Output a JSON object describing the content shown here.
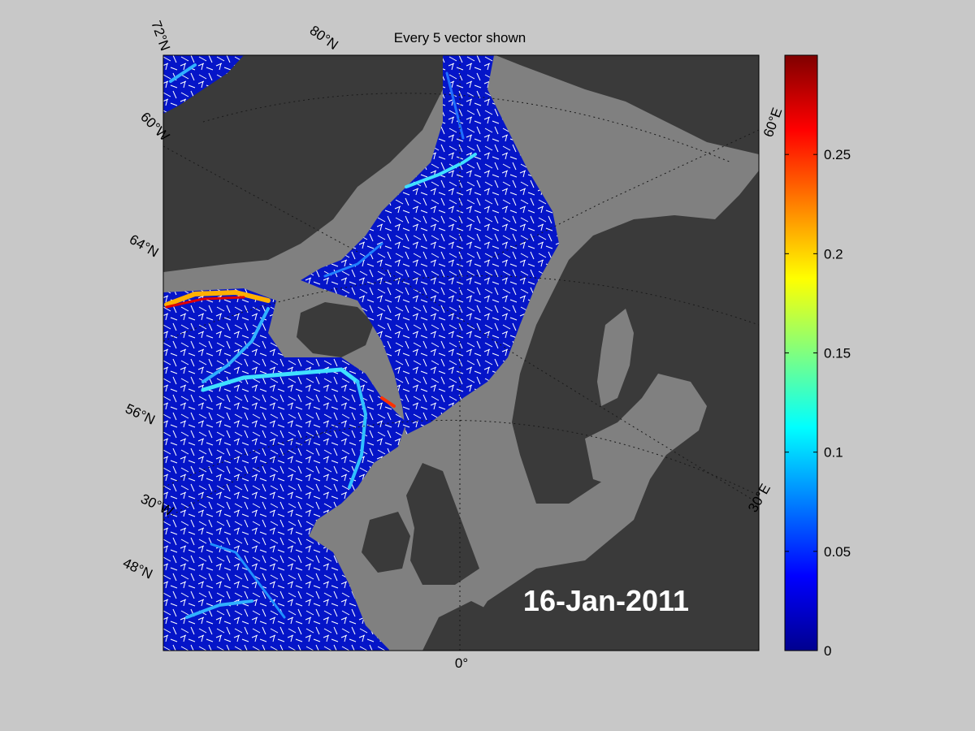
{
  "title": "Every 5 vector shown",
  "date_label": "16-Jan-2011",
  "map": {
    "lat_labels": [
      "72°N",
      "64°N",
      "56°N",
      "48°N"
    ],
    "lon_labels": [
      "80°N",
      "60°W",
      "30°W",
      "0°",
      "30°E",
      "60°E"
    ],
    "colors": {
      "background": "#c8c8c8",
      "land": "#3a3a3a",
      "ice_shelf": "#808080",
      "ocean_low": "#0010d0",
      "vector": "#ffffff",
      "grid": "#1a1a1a"
    }
  },
  "colorbar": {
    "min": 0,
    "max": 0.3,
    "ticks": [
      "0",
      "0.05",
      "0.1",
      "0.15",
      "0.2",
      "0.25"
    ],
    "tick_values": [
      0,
      0.05,
      0.1,
      0.15,
      0.2,
      0.25
    ],
    "colormap": "jet"
  }
}
